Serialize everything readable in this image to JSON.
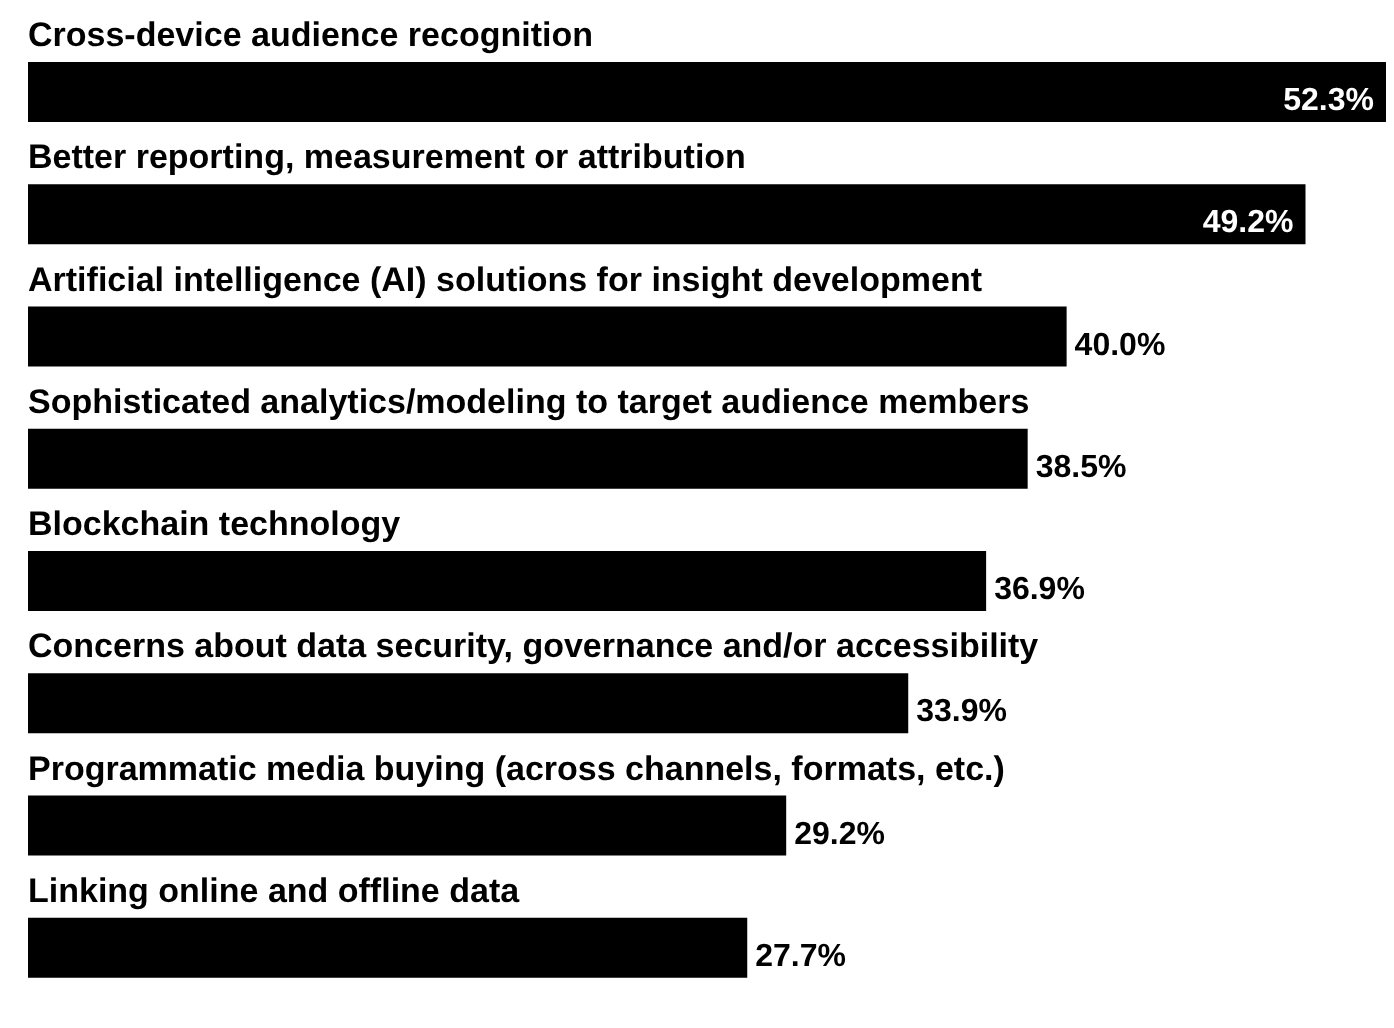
{
  "chart_data": {
    "type": "bar",
    "orientation": "horizontal",
    "categories": [
      "Cross-device audience recognition",
      "Better reporting, measurement or attribution",
      "Artificial intelligence (AI) solutions for insight development",
      "Sophisticated analytics/modeling to target audience members",
      "Blockchain technology",
      "Concerns about data security, governance and/or accessibility",
      "Programmatic media buying (across channels, formats, etc.)",
      "Linking online and offline data"
    ],
    "values": [
      52.3,
      49.2,
      40.0,
      38.5,
      36.9,
      33.9,
      29.2,
      27.7
    ],
    "value_labels": [
      "52.3%",
      "49.2%",
      "40.0%",
      "38.5%",
      "36.9%",
      "33.9%",
      "29.2%",
      "27.7%"
    ],
    "color": "#000000"
  }
}
